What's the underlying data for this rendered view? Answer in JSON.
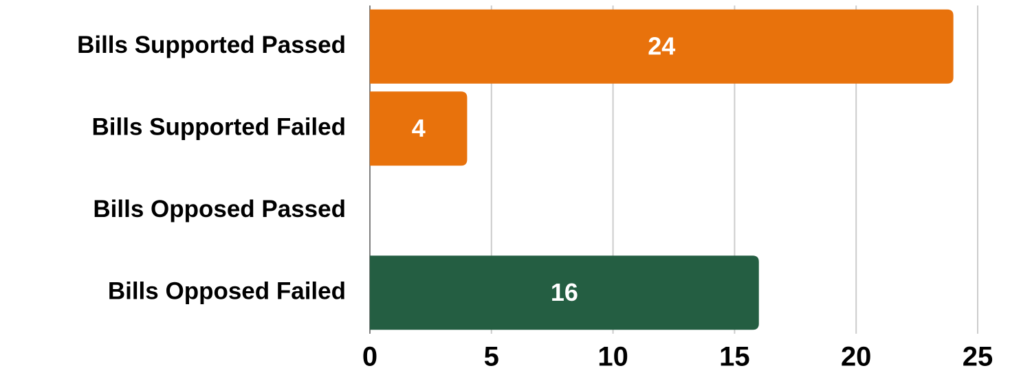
{
  "chart_data": {
    "type": "bar",
    "orientation": "horizontal",
    "categories": [
      "Bills Supported Passed",
      "Bills Supported Failed",
      "Bills Opposed Passed",
      "Bills Opposed Failed"
    ],
    "values": [
      24,
      4,
      0,
      16
    ],
    "colors": [
      "#e8720c",
      "#e8720c",
      "#e8720c",
      "#245e42"
    ],
    "xlim": [
      0,
      25
    ],
    "xticks": [
      0,
      5,
      10,
      15,
      20,
      25
    ],
    "grid": true
  }
}
